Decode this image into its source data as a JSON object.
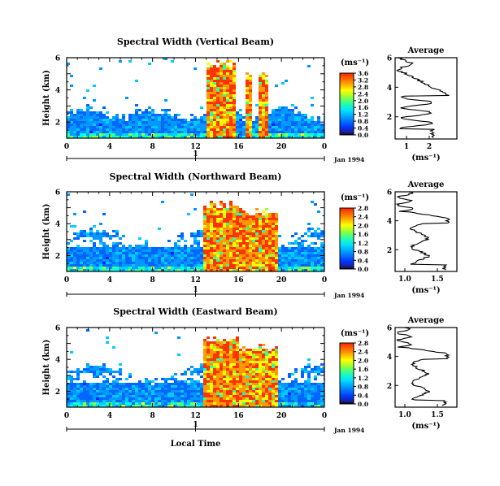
{
  "chart_data": [
    {
      "type": "heatmap",
      "title": "Spectral Width (Vertical Beam)",
      "ylabel": "Height (km)",
      "xlabel": "",
      "x_ticks": [
        "0",
        "4",
        "8",
        "12",
        "16",
        "20",
        "0"
      ],
      "y_ticks": [
        "2",
        "4",
        "6"
      ],
      "date_marker": "1",
      "date_label": "Jan 1994",
      "colorbar": {
        "unit": "(ms⁻¹)",
        "ticks": [
          "0.0",
          "0.4",
          "0.8",
          "1.2",
          "1.6",
          "2.0",
          "2.4",
          "2.8",
          "3.2",
          "3.6"
        ]
      },
      "average": {
        "title": "Average",
        "xlabel": "(ms⁻¹)",
        "x_ticks": [
          "1",
          "2"
        ],
        "y_ticks": [
          "2",
          "4",
          "6"
        ]
      },
      "grid": false
    },
    {
      "type": "heatmap",
      "title": "Spectral Width (Northward Beam)",
      "ylabel": "Height (km)",
      "xlabel": "",
      "x_ticks": [
        "0",
        "4",
        "8",
        "12",
        "16",
        "20",
        "0"
      ],
      "y_ticks": [
        "2",
        "4",
        "6"
      ],
      "date_marker": "1",
      "date_label": "Jan 1994",
      "colorbar": {
        "unit": "(ms⁻¹)",
        "ticks": [
          "0.0",
          "0.4",
          "0.8",
          "1.2",
          "1.6",
          "2.0",
          "2.4",
          "2.8"
        ]
      },
      "average": {
        "title": "Average",
        "xlabel": "(ms⁻¹)",
        "x_ticks": [
          "1.0",
          "1.5"
        ],
        "y_ticks": [
          "2",
          "4",
          "6"
        ]
      },
      "grid": false
    },
    {
      "type": "heatmap",
      "title": "Spectral Width (Eastward Beam)",
      "ylabel": "Height (km)",
      "xlabel": "Local Time",
      "x_ticks": [
        "0",
        "4",
        "8",
        "12",
        "16",
        "20",
        "0"
      ],
      "y_ticks": [
        "2",
        "4",
        "6"
      ],
      "date_marker": "1",
      "date_label": "Jan 1994",
      "colorbar": {
        "unit": "(ms⁻¹)",
        "ticks": [
          "0.0",
          "0.4",
          "0.8",
          "1.2",
          "1.6",
          "2.0",
          "2.4",
          "2.8"
        ]
      },
      "average": {
        "title": "Average",
        "xlabel": "(ms⁻¹)",
        "x_ticks": [
          "1.0",
          "1.5"
        ],
        "y_ticks": [
          "2",
          "4",
          "6"
        ]
      },
      "grid": false
    }
  ]
}
